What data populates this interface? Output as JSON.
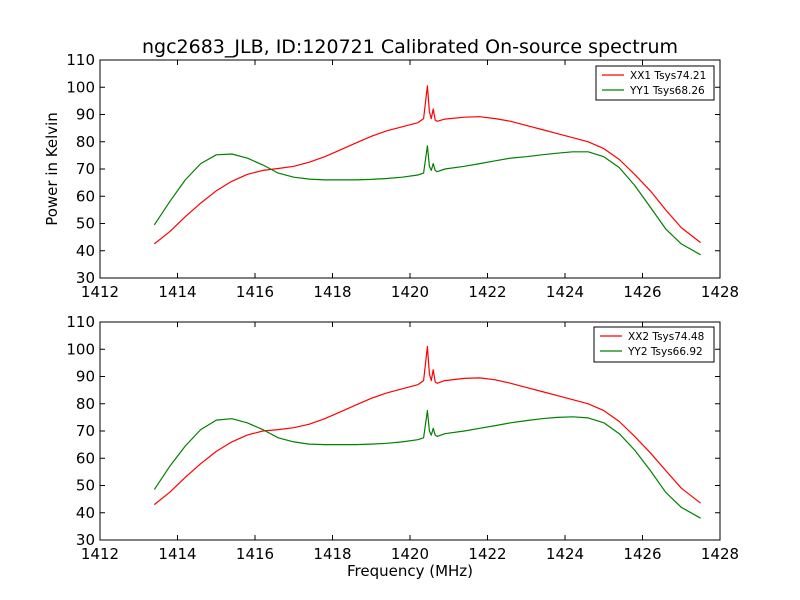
{
  "title": "ngc2683_JLB, ID:120721 Calibrated On-source spectrum",
  "ylabel": "Power in Kelvin",
  "xlabel": "Frequency (MHz)",
  "colors": {
    "red": "#ff0000",
    "green": "#008000"
  },
  "chart_data": [
    {
      "type": "line",
      "xlim": [
        1412,
        1428
      ],
      "ylim": [
        30,
        110
      ],
      "x_ticks": [
        1412,
        1414,
        1416,
        1418,
        1420,
        1422,
        1424,
        1426,
        1428
      ],
      "y_ticks": [
        30,
        40,
        50,
        60,
        70,
        80,
        90,
        100,
        110
      ],
      "legend_position": "top-right",
      "series": [
        {
          "name": "XX1 Tsys74.21",
          "color": "#ff0000",
          "x": [
            1413.4,
            1413.8,
            1414.2,
            1414.6,
            1415.0,
            1415.4,
            1415.8,
            1416.2,
            1416.6,
            1417.0,
            1417.4,
            1417.8,
            1418.2,
            1418.6,
            1419.0,
            1419.4,
            1419.8,
            1420.2,
            1420.35,
            1420.45,
            1420.5,
            1420.55,
            1420.6,
            1420.65,
            1420.7,
            1420.9,
            1421.4,
            1421.8,
            1422.2,
            1422.6,
            1423.0,
            1423.4,
            1423.8,
            1424.2,
            1424.6,
            1425.0,
            1425.4,
            1425.8,
            1426.2,
            1426.6,
            1427.0,
            1427.5
          ],
          "y": [
            42.5,
            47,
            52.5,
            57.5,
            62,
            65.5,
            68,
            69.5,
            70.2,
            71,
            72.5,
            74.5,
            77,
            79.5,
            82,
            84,
            85.5,
            87,
            88.5,
            100.5,
            91,
            88.5,
            92,
            88,
            87.5,
            88.3,
            89,
            89.2,
            88.5,
            87.5,
            86,
            84.5,
            83,
            81.5,
            80,
            77.5,
            73.5,
            68,
            62,
            55,
            48.5,
            43
          ]
        },
        {
          "name": "YY1 Tsys68.26",
          "color": "#008000",
          "x": [
            1413.4,
            1413.8,
            1414.2,
            1414.6,
            1415.0,
            1415.4,
            1415.8,
            1416.2,
            1416.6,
            1417.0,
            1417.4,
            1417.8,
            1418.2,
            1418.6,
            1419.0,
            1419.4,
            1419.8,
            1420.2,
            1420.35,
            1420.45,
            1420.5,
            1420.55,
            1420.6,
            1420.65,
            1420.7,
            1420.9,
            1421.4,
            1421.8,
            1422.2,
            1422.6,
            1423.0,
            1423.4,
            1423.8,
            1424.2,
            1424.6,
            1425.0,
            1425.4,
            1425.8,
            1426.2,
            1426.6,
            1427.0,
            1427.5
          ],
          "y": [
            49.5,
            58,
            66,
            72,
            75.2,
            75.5,
            74,
            71.5,
            68.5,
            67,
            66.3,
            66,
            66,
            66,
            66.2,
            66.5,
            67,
            67.8,
            68.5,
            78.5,
            71,
            69.5,
            72,
            69.5,
            69,
            70,
            71,
            72,
            73,
            74,
            74.5,
            75.2,
            75.8,
            76.3,
            76.3,
            74.5,
            70.5,
            64,
            56,
            48,
            42.5,
            38.5
          ]
        }
      ]
    },
    {
      "type": "line",
      "xlim": [
        1412,
        1428
      ],
      "ylim": [
        30,
        110
      ],
      "x_ticks": [
        1412,
        1414,
        1416,
        1418,
        1420,
        1422,
        1424,
        1426,
        1428
      ],
      "y_ticks": [
        30,
        40,
        50,
        60,
        70,
        80,
        90,
        100,
        110
      ],
      "legend_position": "top-right",
      "series": [
        {
          "name": "XX2 Tsys74.48",
          "color": "#ff0000",
          "x": [
            1413.4,
            1413.8,
            1414.2,
            1414.6,
            1415.0,
            1415.4,
            1415.8,
            1416.2,
            1416.6,
            1417.0,
            1417.4,
            1417.8,
            1418.2,
            1418.6,
            1419.0,
            1419.4,
            1419.8,
            1420.2,
            1420.35,
            1420.45,
            1420.5,
            1420.55,
            1420.6,
            1420.65,
            1420.7,
            1420.9,
            1421.4,
            1421.8,
            1422.2,
            1422.6,
            1423.0,
            1423.4,
            1423.8,
            1424.2,
            1424.6,
            1425.0,
            1425.4,
            1425.8,
            1426.2,
            1426.6,
            1427.0,
            1427.5
          ],
          "y": [
            43,
            47.5,
            53,
            58,
            62.5,
            66,
            68.5,
            70,
            70.5,
            71.2,
            72.5,
            74.5,
            77,
            79.5,
            82,
            84,
            85.5,
            87,
            88.5,
            101,
            91,
            88.5,
            92.5,
            88,
            87.5,
            88.5,
            89.3,
            89.5,
            88.8,
            87.5,
            86,
            84.5,
            83,
            81.5,
            80,
            77.5,
            73.5,
            68,
            62,
            55.5,
            49,
            43.5
          ]
        },
        {
          "name": "YY2 Tsys66.92",
          "color": "#008000",
          "x": [
            1413.4,
            1413.8,
            1414.2,
            1414.6,
            1415.0,
            1415.4,
            1415.8,
            1416.2,
            1416.6,
            1417.0,
            1417.4,
            1417.8,
            1418.2,
            1418.6,
            1419.0,
            1419.4,
            1419.8,
            1420.2,
            1420.35,
            1420.45,
            1420.5,
            1420.55,
            1420.6,
            1420.65,
            1420.7,
            1420.9,
            1421.4,
            1421.8,
            1422.2,
            1422.6,
            1423.0,
            1423.4,
            1423.8,
            1424.2,
            1424.6,
            1425.0,
            1425.4,
            1425.8,
            1426.2,
            1426.6,
            1427.0,
            1427.5
          ],
          "y": [
            48.5,
            57,
            64.5,
            70.5,
            74,
            74.5,
            73,
            70.5,
            67.5,
            66,
            65.2,
            65,
            65,
            65,
            65.2,
            65.5,
            66,
            66.8,
            67.5,
            77.5,
            70,
            68.5,
            71,
            68.5,
            68,
            69,
            70,
            71,
            72,
            73,
            73.8,
            74.5,
            75,
            75.2,
            74.8,
            73,
            69,
            63,
            55.5,
            47.5,
            42,
            38
          ]
        }
      ]
    }
  ]
}
